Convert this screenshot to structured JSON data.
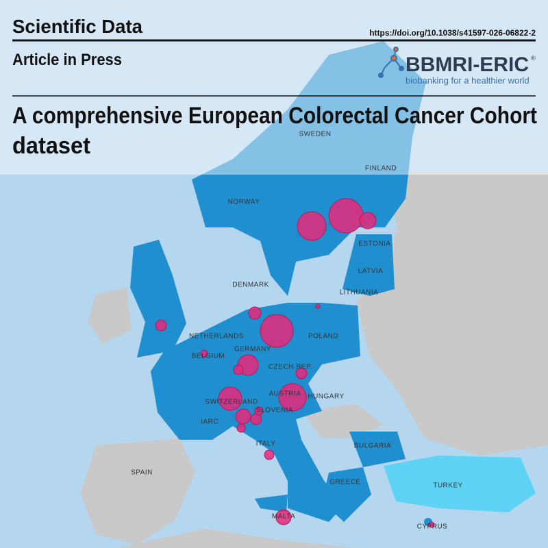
{
  "header": {
    "journal": "Scientific Data",
    "status": "Article in Press",
    "doi": "https://doi.org/10.1038/s41597-026-06822-2",
    "logo": {
      "name": "BBMRI-ERIC",
      "mark": "®",
      "tagline": "biobanking for a healthier world"
    }
  },
  "title_lines": [
    "A comprehensive European Colorectal Cancer Cohort",
    "dataset"
  ],
  "map_labels": [
    "SWEDEN",
    "FINLAND",
    "NORWAY",
    "ESTONIA",
    "LATVIA",
    "DENMARK",
    "LITHUANIA",
    "NETHERLANDS",
    "POLAND",
    "BELGIUM",
    "GERMANY",
    "CZECH REP.",
    "AUSTRIA",
    "HUNGARY",
    "SWITZERLAND",
    "SLOVENIA",
    "IARC",
    "ITALY",
    "BULGARIA",
    "SPAIN",
    "GREECE",
    "TURKEY",
    "MALTA",
    "CYPRUS"
  ]
}
